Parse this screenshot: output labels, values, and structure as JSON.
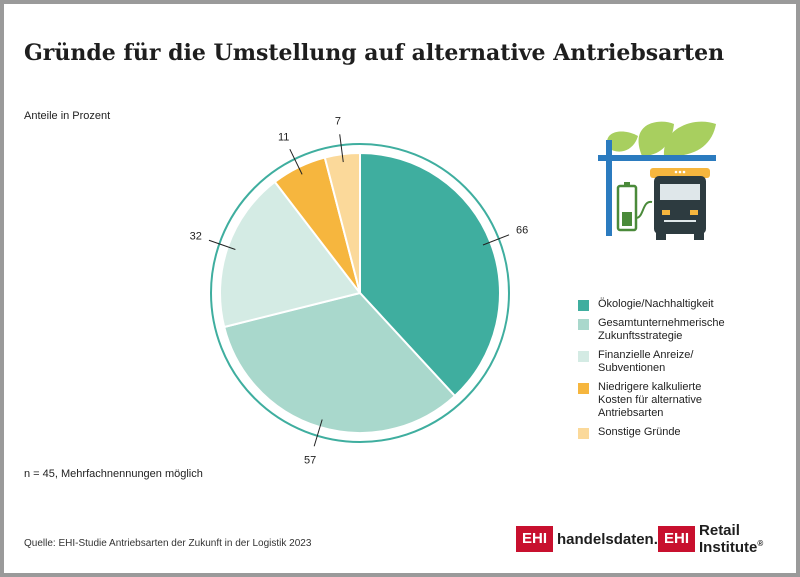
{
  "title": "Gründe für die Umstellung auf alternative Antriebsarten",
  "subtitle": "Anteile in Prozent",
  "note": "n = 45, Mehrfachnennungen möglich",
  "source": "Quelle: EHI-Studie Antriebsarten der Zukunft in der Logistik 2023",
  "logos": {
    "left_box": "EHI",
    "left_text": "handelsdaten.de",
    "right_box": "EHI",
    "right_text": "Retail Institute",
    "right_mark": "®"
  },
  "icon": "truck-charging-station-with-leaves-icon",
  "chart_data": {
    "type": "pie",
    "title": "Gründe für die Umstellung auf alternative Antriebsarten",
    "unit": "Anteile in Prozent",
    "categories": [
      "Ökologie/Nachhaltigkeit",
      "Gesamtunternehmerische Zukunftsstrategie",
      "Finanzielle Anreize/ Subventionen",
      "Niedrigere kalkulierte Kosten für alternative Antriebsarten",
      "Sonstige Gründe"
    ],
    "legend_labels": [
      "Ökologie/Nachhaltigkeit",
      "Gesamtunternehmerische\nZukunftsstrategie",
      "Finanzielle Anreize/\nSubventionen",
      "Niedrigere kalkulierte\nKosten für alternative\nAntriebsarten",
      "Sonstige Gründe"
    ],
    "values": [
      66,
      57,
      32,
      11,
      7
    ],
    "colors": [
      "#3fae9f",
      "#a9d8cc",
      "#d4ebe4",
      "#f6b63e",
      "#fbd99a"
    ],
    "ring_color": "#3fae9f",
    "legend_position": "right"
  }
}
